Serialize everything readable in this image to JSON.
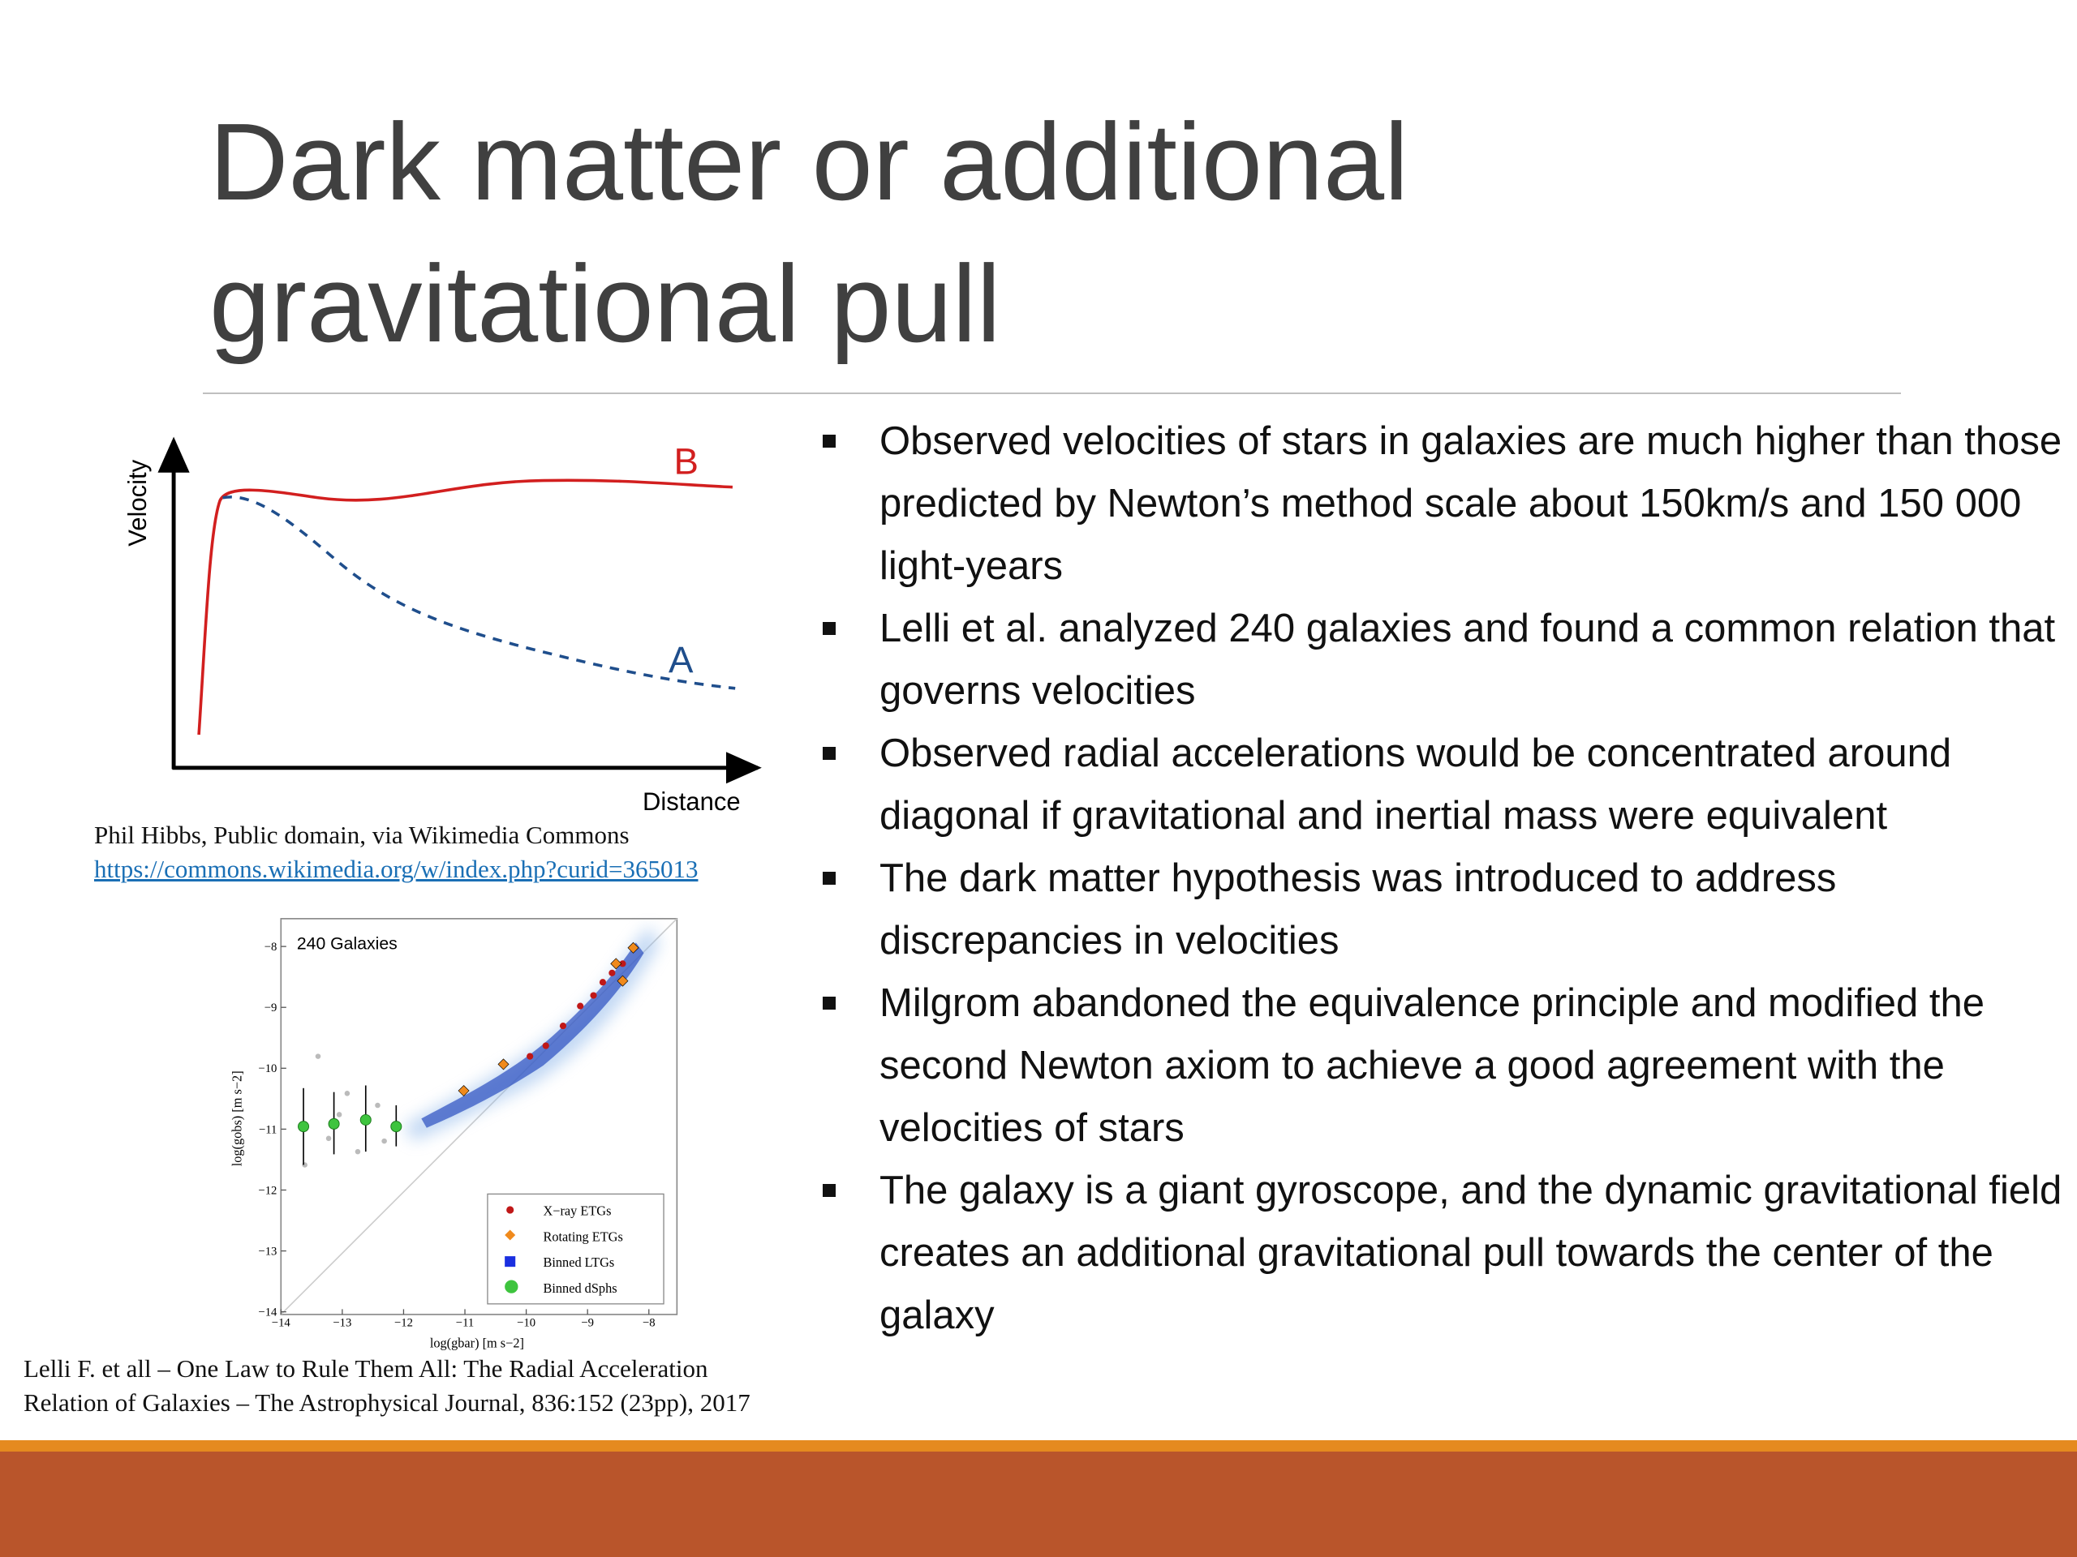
{
  "title": "Dark matter or additional gravitational pull",
  "bullets": [
    "Observed velocities of stars in galaxies are much higher than those predicted by Newton’s method scale about 150km/s and 150 000 light-years",
    "Lelli et al. analyzed 240 galaxies and found a common relation that governs velocities",
    "Observed radial accelerations would be concentrated around diagonal if gravitational and inertial mass were equivalent",
    "The dark matter hypothesis was introduced to address discrepancies in velocities",
    "Milgrom abandoned the equivalence principle and modified the second Newton axiom to achieve a good agreement with the velocities of stars",
    "The galaxy is a giant gyroscope, and the dynamic gravitational field creates an additional gravitational pull towards the center of the galaxy"
  ],
  "figure_1": {
    "y_label": "Velocity",
    "x_label": "Distance",
    "curve_b": "B",
    "curve_a": "A",
    "credit": "Phil Hibbs, Public domain, via Wikimedia Commons",
    "link": "https://commons.wikimedia.org/w/index.php?curid=365013"
  },
  "figure_2": {
    "annotation": "240 Galaxies",
    "y_label": "log(gobs) [m s−2]",
    "x_label": "log(gbar) [m s−2]",
    "yticks": [
      "−8",
      "−9",
      "−10",
      "−11",
      "−12",
      "−13",
      "−14"
    ],
    "xticks": [
      "−14",
      "−13",
      "−12",
      "−11",
      "−10",
      "−9",
      "−8"
    ],
    "legend": [
      "X−ray ETGs",
      "Rotating ETGs",
      "Binned LTGs",
      "Binned dSphs"
    ]
  },
  "citation": [
    "Lelli F. et all – One Law to Rule Them All: The Radial Acceleration",
    "Relation of Galaxies – The Astrophysical Journal, 836:152 (23pp), 2017"
  ]
}
